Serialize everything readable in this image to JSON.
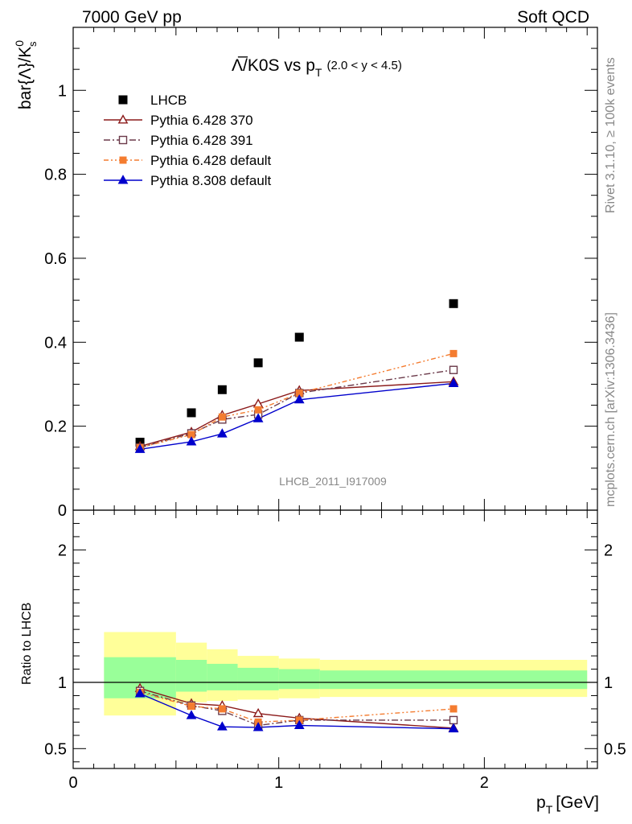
{
  "header": {
    "left": "7000 GeV pp",
    "right": "Soft QCD"
  },
  "side_text": {
    "rivet": "Rivet 3.1.10, ≥ 100k events",
    "mcplots": "mcplots.cern.ch [arXiv:1306.3436]"
  },
  "watermark": "LHCB_2011_I917009",
  "chart_data": {
    "type": "scatter",
    "title": {
      "main": "Λ̅/K0S vs p",
      "sub": "T",
      "range": "(2.0 < y < 4.5)"
    },
    "ylabel": "bar{Λ}/K",
    "ylabel_sup": "0",
    "ylabel_sub": "s",
    "xlabel_main": "p",
    "xlabel_sub": "T",
    "xlabel_unit": "[GeV]",
    "ratio_ylabel": "Ratio to LHCB",
    "xlim": [
      0,
      2.55
    ],
    "ylim": [
      0,
      1.15
    ],
    "ratio_ylim": [
      0.35,
      2.3
    ],
    "x_ticks": [
      "0",
      "1",
      "2"
    ],
    "y_ticks": [
      "0",
      "0.2",
      "0.4",
      "0.6",
      "0.8",
      "1"
    ],
    "ratio_ticks": [
      "0.5",
      "1",
      "2"
    ],
    "x": [
      0.325,
      0.575,
      0.725,
      0.9,
      1.1,
      1.85
    ],
    "bin_edges": [
      0.15,
      0.5,
      0.65,
      0.8,
      1.0,
      1.2,
      2.5
    ],
    "band_inner": [
      [
        0.88,
        1.19
      ],
      [
        0.93,
        1.17
      ],
      [
        0.94,
        1.14
      ],
      [
        0.94,
        1.11
      ],
      [
        0.95,
        1.1
      ],
      [
        0.95,
        1.09
      ]
    ],
    "band_outer": [
      [
        0.75,
        1.38
      ],
      [
        0.85,
        1.3
      ],
      [
        0.86,
        1.25
      ],
      [
        0.87,
        1.2
      ],
      [
        0.88,
        1.18
      ],
      [
        0.89,
        1.17
      ]
    ],
    "series": [
      {
        "name": "LHCB",
        "color": "#000000",
        "marker": "square-filled",
        "line": "none",
        "values": [
          0.162,
          0.232,
          0.287,
          0.351,
          0.412,
          0.492
        ],
        "ratio": [
          1,
          1,
          1,
          1,
          1,
          1
        ]
      },
      {
        "name": "Pythia 6.428 370",
        "color": "#8b1a1a",
        "marker": "triangle-open",
        "line": "solid",
        "values": [
          0.152,
          0.186,
          0.226,
          0.253,
          0.285,
          0.306
        ],
        "ratio": [
          0.955,
          0.84,
          0.825,
          0.765,
          0.73,
          0.655
        ]
      },
      {
        "name": "Pythia 6.428 391",
        "color": "#6b3a4a",
        "marker": "square-open",
        "line": "dashdot",
        "values": [
          0.149,
          0.183,
          0.216,
          0.228,
          0.279,
          0.334
        ],
        "ratio": [
          0.935,
          0.825,
          0.785,
          0.675,
          0.715,
          0.715
        ]
      },
      {
        "name": "Pythia 6.428 default",
        "color": "#f47c30",
        "marker": "square-filled",
        "line": "dashdotdot",
        "values": [
          0.149,
          0.18,
          0.222,
          0.239,
          0.279,
          0.373
        ],
        "ratio": [
          0.925,
          0.82,
          0.8,
          0.7,
          0.715,
          0.8
        ]
      },
      {
        "name": "Pythia 8.308 default",
        "color": "#0000cc",
        "marker": "triangle-filled",
        "line": "solid",
        "values": [
          0.145,
          0.163,
          0.182,
          0.218,
          0.263,
          0.302
        ],
        "ratio": [
          0.915,
          0.75,
          0.665,
          0.66,
          0.675,
          0.65
        ]
      }
    ]
  }
}
